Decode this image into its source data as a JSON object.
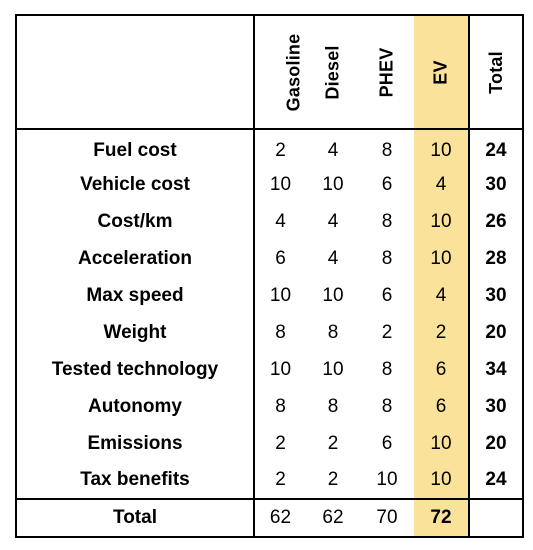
{
  "columns": [
    "Gasoline",
    "Diesel",
    "PHEV",
    "EV",
    "Total"
  ],
  "highlight_color": "#fbe29a",
  "rows": [
    {
      "label": "Fuel cost",
      "values": [
        "2",
        "4",
        "8",
        "10"
      ],
      "total": "24"
    },
    {
      "label": "Vehicle cost",
      "values": [
        "10",
        "10",
        "6",
        "4"
      ],
      "total": "30"
    },
    {
      "label": "Cost/km",
      "values": [
        "4",
        "4",
        "8",
        "10"
      ],
      "total": "26"
    },
    {
      "label": "Acceleration",
      "values": [
        "6",
        "4",
        "8",
        "10"
      ],
      "total": "28"
    },
    {
      "label": "Max speed",
      "values": [
        "10",
        "10",
        "6",
        "4"
      ],
      "total": "30"
    },
    {
      "label": "Weight",
      "values": [
        "8",
        "8",
        "2",
        "2"
      ],
      "total": "20"
    },
    {
      "label": "Tested technology",
      "values": [
        "10",
        "10",
        "8",
        "6"
      ],
      "total": "34"
    },
    {
      "label": "Autonomy",
      "values": [
        "8",
        "8",
        "8",
        "6"
      ],
      "total": "30"
    },
    {
      "label": "Emissions",
      "values": [
        "2",
        "2",
        "6",
        "10"
      ],
      "total": "20"
    },
    {
      "label": "Tax benefits",
      "values": [
        "2",
        "2",
        "10",
        "10"
      ],
      "total": "24"
    }
  ],
  "footer": {
    "label": "Total",
    "values": [
      "62",
      "62",
      "70",
      "72"
    ],
    "total": ""
  }
}
